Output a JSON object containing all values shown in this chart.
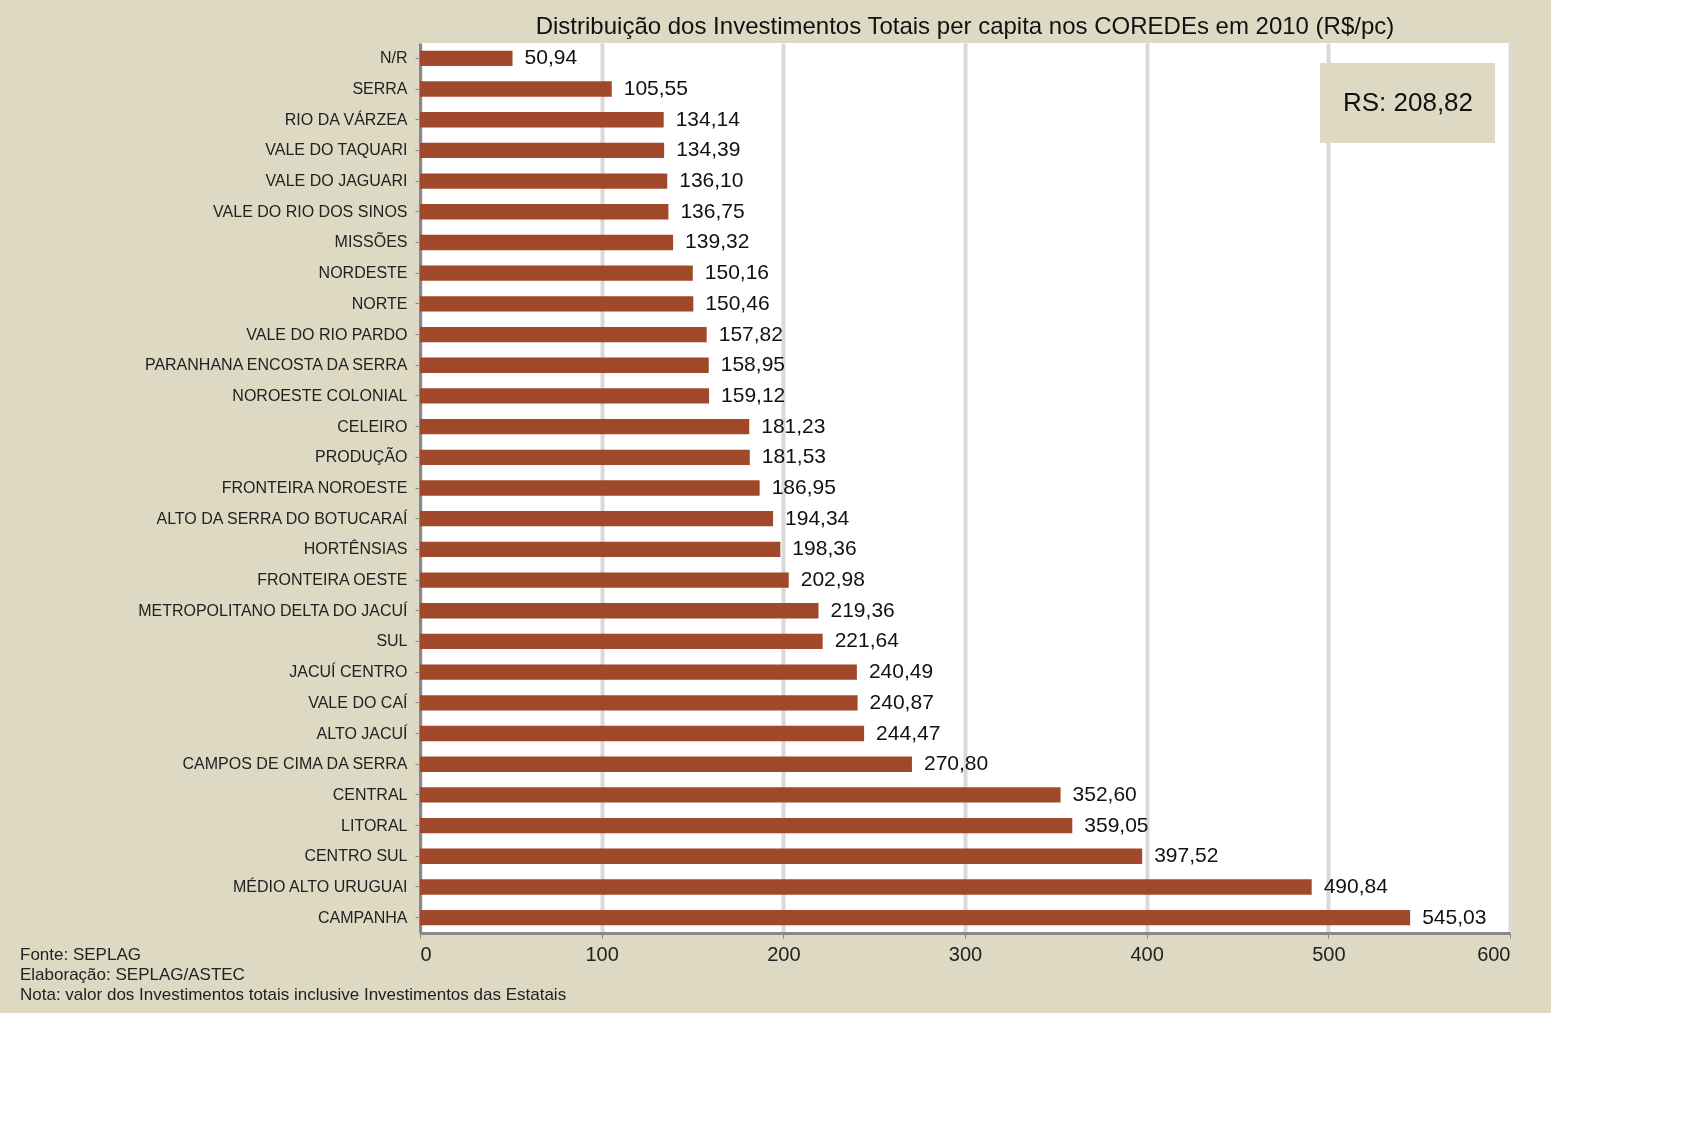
{
  "chart_data": {
    "type": "bar",
    "orientation": "horizontal",
    "title": "Distribuição  dos Investimentos Totais per capita nos COREDEs em 2010 (R$/pc)",
    "categories": [
      "N/R",
      "SERRA",
      "RIO DA VÁRZEA",
      "VALE DO TAQUARI",
      "VALE DO JAGUARI",
      "VALE DO RIO DOS SINOS",
      "MISSÕES",
      "NORDESTE",
      "NORTE",
      "VALE DO RIO PARDO",
      "PARANHANA ENCOSTA  DA SERRA",
      "NOROESTE  COLONIAL",
      "CELEIRO",
      "PRODUÇÃO",
      "FRONTEIRA  NOROESTE",
      "ALTO DA SERRA  DO BOTUCARAÍ",
      "HORTÊNSIAS",
      "FRONTEIRA  OESTE",
      "METROPOLITANO  DELTA DO JACUÍ",
      "SUL",
      "JACUÍ CENTRO",
      "VALE DO CAÍ",
      "ALTO JACUÍ",
      "CAMPOS DE CIMA  DA SERRA",
      "CENTRAL",
      "LITORAL",
      "CENTRO SUL",
      "MÉDIO ALTO  URUGUAI",
      "CAMPANHA"
    ],
    "values": [
      50.94,
      105.55,
      134.14,
      134.39,
      136.1,
      136.75,
      139.32,
      150.16,
      150.46,
      157.82,
      158.95,
      159.12,
      181.23,
      181.53,
      186.95,
      194.34,
      198.36,
      202.98,
      219.36,
      221.64,
      240.49,
      240.87,
      244.47,
      270.8,
      352.6,
      359.05,
      397.52,
      490.84,
      545.03
    ],
    "value_labels": [
      "50,94",
      "105,55",
      "134,14",
      "134,39",
      "136,10",
      "136,75",
      "139,32",
      "150,16",
      "150,46",
      "157,82",
      "158,95",
      "159,12",
      "181,23",
      "181,53",
      "186,95",
      "194,34",
      "198,36",
      "202,98",
      "219,36",
      "221,64",
      "240,49",
      "240,87",
      "244,47",
      "270,80",
      "352,60",
      "359,05",
      "397,52",
      "490,84",
      "545,03"
    ],
    "color": "#a0492a",
    "xlim": [
      0,
      600
    ],
    "xticks": [
      0,
      100,
      200,
      300,
      400,
      500,
      600
    ],
    "grid": "x",
    "annotations": [
      "RS: 208,82",
      "Fonte:  SEPLAG",
      "Elaboração:  SEPLAG/ASTEC",
      "Nota: valor dos Investimentos  totais inclusive Investimentos das Estatais"
    ]
  }
}
